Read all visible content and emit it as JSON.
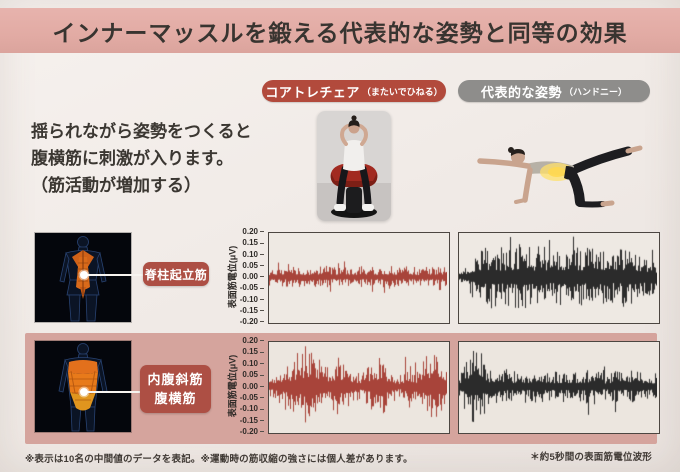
{
  "title": "インナーマッスルを鍛える代表的な姿勢と同等の効果",
  "intro": {
    "line1": "揺られながら姿勢をつくると",
    "line2": "腹横筋に刺激が入ります。",
    "line3": "（筋活動が増加する）"
  },
  "columns": {
    "chair": {
      "label": "コアトレチェア",
      "sublabel": "（またいでひねる）"
    },
    "reference": {
      "label": "代表的な姿勢",
      "sublabel": "（ハンドニー）"
    }
  },
  "rows": [
    {
      "muscle_label": "脊柱起立筋"
    },
    {
      "muscle_label_line1": "内腹斜筋",
      "muscle_label_line2": "腹横筋"
    }
  ],
  "axis": {
    "ylabel": "表面筋電位(μV)",
    "yticks": [
      "0.20",
      "0.15",
      "0.10",
      "0.05",
      "0.00",
      "-0.05",
      "-0.10",
      "-0.15",
      "-0.20"
    ]
  },
  "footnotes": {
    "left": "※表示は10名の中間値のデータを表記。※運動時の筋収縮の強さには個人差があります。",
    "right": "＊約5秒間の表面筋電位波形"
  },
  "theme": {
    "banner_pink": "#e2aba4",
    "band_pink": "#d5a49d",
    "pill_red": "#b24a3c",
    "pill_gray": "#8e8d8b",
    "label_red": "#ad4f44",
    "page_bg": "#f1ebe7",
    "text_dark": "#383430",
    "waveform_red": "#a8443a",
    "waveform_black": "#2b2b2b",
    "muscle_orange": "#d96a1a"
  },
  "chart_data": [
    {
      "type": "line",
      "subtype": "emg-waveform",
      "muscle": "脊柱起立筋",
      "condition": "コアトレチェア（またいでひねる）",
      "color": "#a8443a",
      "ylabel": "表面筋電位(μV)",
      "ylim": [
        -0.2,
        0.2
      ],
      "yticks": [
        0.2,
        0.15,
        0.1,
        0.05,
        0.0,
        -0.05,
        -0.1,
        -0.15,
        -0.2
      ],
      "duration_label": "約5秒間",
      "envelope_uv": [
        0.04,
        0.05,
        0.045,
        0.05,
        0.04,
        0.05,
        0.055,
        0.045,
        0.05,
        0.04,
        0.05,
        0.045,
        0.05,
        0.055,
        0.045,
        0.05,
        0.04,
        0.05,
        0.045,
        0.05
      ],
      "seed": 7
    },
    {
      "type": "line",
      "subtype": "emg-waveform",
      "muscle": "脊柱起立筋",
      "condition": "代表的な姿勢（ハンドニー）",
      "color": "#2b2b2b",
      "ylabel": "表面筋電位(μV)",
      "ylim": [
        -0.2,
        0.2
      ],
      "yticks": [
        0.2,
        0.15,
        0.1,
        0.05,
        0.0,
        -0.05,
        -0.1,
        -0.15,
        -0.2
      ],
      "duration_label": "約5秒間",
      "envelope_uv": [
        0.03,
        0.08,
        0.13,
        0.15,
        0.12,
        0.14,
        0.16,
        0.13,
        0.15,
        0.12,
        0.14,
        0.15,
        0.13,
        0.16,
        0.14,
        0.12,
        0.14,
        0.13,
        0.11,
        0.09
      ],
      "seed": 13
    },
    {
      "type": "line",
      "subtype": "emg-waveform",
      "muscle": "内腹斜筋・腹横筋",
      "condition": "コアトレチェア（またいでひねる）",
      "color": "#a8443a",
      "ylabel": "表面筋電位(μV)",
      "ylim": [
        -0.2,
        0.2
      ],
      "yticks": [
        0.2,
        0.15,
        0.1,
        0.05,
        0.0,
        -0.05,
        -0.1,
        -0.15,
        -0.2
      ],
      "duration_label": "約5秒間",
      "envelope_uv": [
        0.05,
        0.08,
        0.12,
        0.1,
        0.2,
        0.16,
        0.1,
        0.12,
        0.14,
        0.08,
        0.06,
        0.12,
        0.15,
        0.08,
        0.05,
        0.1,
        0.07,
        0.18,
        0.14,
        0.1
      ],
      "seed": 21
    },
    {
      "type": "line",
      "subtype": "emg-waveform",
      "muscle": "内腹斜筋・腹横筋",
      "condition": "代表的な姿勢（ハンドニー）",
      "color": "#2b2b2b",
      "ylabel": "表面筋電位(μV)",
      "ylim": [
        -0.2,
        0.2
      ],
      "yticks": [
        0.2,
        0.15,
        0.1,
        0.05,
        0.0,
        -0.05,
        -0.1,
        -0.15,
        -0.2
      ],
      "duration_label": "約5秒間",
      "envelope_uv": [
        0.05,
        0.18,
        0.16,
        0.08,
        0.09,
        0.07,
        0.08,
        0.07,
        0.08,
        0.07,
        0.06,
        0.07,
        0.08,
        0.07,
        0.06,
        0.07,
        0.07,
        0.08,
        0.07,
        0.06
      ],
      "seed": 42
    }
  ]
}
